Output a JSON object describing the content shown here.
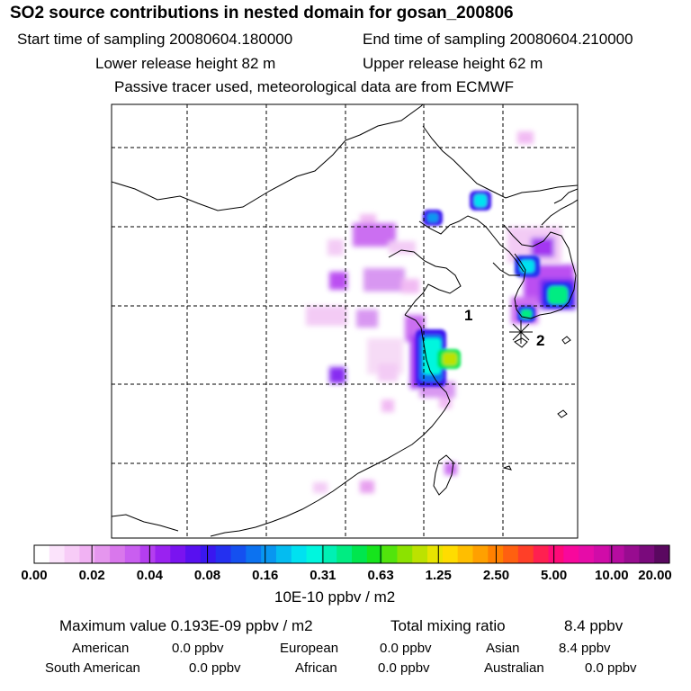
{
  "header": {
    "title": "SO2 source contributions in nested domain for gosan_200806",
    "start": "Start time of sampling 20080604.180000",
    "end": "End time of sampling 20080604.210000",
    "lower": "Lower release height   82 m",
    "upper": "Upper release height   62 m",
    "note": "Passive tracer used, meteorological data are from ECMWF"
  },
  "map": {
    "points": [
      {
        "label": "1"
      },
      {
        "label": "2"
      }
    ]
  },
  "colorbar": {
    "ticks": [
      "0.00",
      "0.02",
      "0.04",
      "0.08",
      "0.16",
      "0.31",
      "0.63",
      "1.25",
      "2.50",
      "5.00",
      "10.00",
      "20.00"
    ],
    "colors": [
      "#ffffff",
      "#fbe3fb",
      "#f7ccf7",
      "#f1b2f3",
      "#e596ee",
      "#d977ec",
      "#c95ef0",
      "#b43ef0",
      "#9a22f0",
      "#7a13f0",
      "#5810f0",
      "#3a17f0",
      "#2430f0",
      "#1550f0",
      "#0c72f0",
      "#0896f0",
      "#04bcf0",
      "#00e1f0",
      "#00f6de",
      "#00f0b4",
      "#00ec82",
      "#00e64e",
      "#16e41c",
      "#52e40c",
      "#8ce200",
      "#bce200",
      "#e8e400",
      "#ffdc00",
      "#ffbe00",
      "#ffa000",
      "#ff8000",
      "#ff6010",
      "#ff3f28",
      "#ff2050",
      "#ff0a78",
      "#f8089c",
      "#e60ca8",
      "#d00ca8",
      "#b60ca0",
      "#980c90",
      "#7a0a7c",
      "#5a0860"
    ],
    "unit": "10E-10 ppbv / m2"
  },
  "summary": {
    "max_label": "Maximum value  0.193E-09 ppbv / m2",
    "total_label": "Total mixing ratio",
    "total_value": "8.4 ppbv",
    "regions": [
      {
        "name": "American",
        "value": "0.0 ppbv"
      },
      {
        "name": "European",
        "value": "0.0 ppbv"
      },
      {
        "name": "Asian",
        "value": "8.4 ppbv"
      },
      {
        "name": "South American",
        "value": "0.0 ppbv"
      },
      {
        "name": "African",
        "value": "0.0 ppbv"
      },
      {
        "name": "Australian",
        "value": "0.0 ppbv"
      }
    ]
  }
}
